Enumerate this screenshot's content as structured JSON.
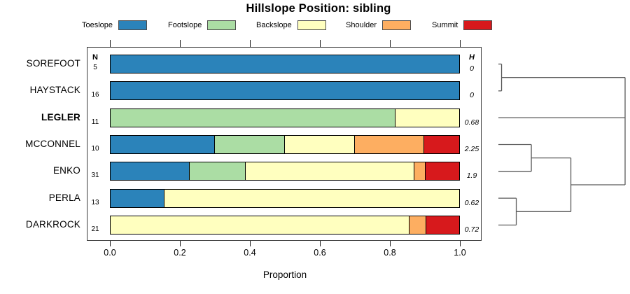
{
  "title": "Hillslope Position: sibling",
  "columns": {
    "n_header": "N",
    "h_header": "H"
  },
  "axis": {
    "xlabel": "Proportion",
    "ticks": [
      "0.0",
      "0.2",
      "0.4",
      "0.6",
      "0.8",
      "1.0"
    ]
  },
  "legend": {
    "items": [
      {
        "label": "Toeslope",
        "color": "#2B83BA"
      },
      {
        "label": "Footslope",
        "color": "#ABDDA4"
      },
      {
        "label": "Backslope",
        "color": "#FFFFBF"
      },
      {
        "label": "Shoulder",
        "color": "#FDAE61"
      },
      {
        "label": "Summit",
        "color": "#D7191C"
      }
    ]
  },
  "chart_data": {
    "type": "bar",
    "subtype": "horizontal-stacked-proportion",
    "title": "Hillslope Position: sibling",
    "xlabel": "Proportion",
    "xlim": [
      0,
      1
    ],
    "x_ticks": [
      0.0,
      0.2,
      0.4,
      0.6,
      0.8,
      1.0
    ],
    "legend_position": "top",
    "categories": [
      "Toeslope",
      "Footslope",
      "Backslope",
      "Shoulder",
      "Summit"
    ],
    "colors": [
      "#2B83BA",
      "#ABDDA4",
      "#FFFFBF",
      "#FDAE61",
      "#D7191C"
    ],
    "rows": [
      {
        "name": "SOREFOOT",
        "n": "5",
        "h": "0",
        "shannon_h": 0,
        "bold": false,
        "proportions": [
          1,
          0,
          0,
          0,
          0
        ]
      },
      {
        "name": "HAYSTACK",
        "n": "16",
        "h": "0",
        "shannon_h": 0,
        "bold": false,
        "proportions": [
          1,
          0,
          0,
          0,
          0
        ]
      },
      {
        "name": "LEGLER",
        "n": "11",
        "h": "0.68",
        "shannon_h": 0.68,
        "bold": true,
        "proportions": [
          0,
          0.818,
          0.182,
          0,
          0
        ]
      },
      {
        "name": "MCCONNEL",
        "n": "10",
        "h": "2.25",
        "shannon_h": 2.25,
        "bold": false,
        "proportions": [
          0.3,
          0.2,
          0.2,
          0.2,
          0.1
        ]
      },
      {
        "name": "ENKO",
        "n": "31",
        "h": "1.9",
        "shannon_h": 1.9,
        "bold": false,
        "proportions": [
          0.226,
          0.161,
          0.484,
          0.032,
          0.097
        ]
      },
      {
        "name": "PERLA",
        "n": "13",
        "h": "0.62",
        "shannon_h": 0.62,
        "bold": false,
        "proportions": [
          0.154,
          0,
          0.846,
          0,
          0
        ]
      },
      {
        "name": "DARKROCK",
        "n": "21",
        "h": "0.72",
        "shannon_h": 0.72,
        "bold": false,
        "proportions": [
          0,
          0,
          0.857,
          0.048,
          0.095
        ]
      }
    ],
    "dendrogram": {
      "orientation": "right",
      "joins": [
        {
          "children": [
            {
              "leaf": 0
            },
            {
              "leaf": 1
            }
          ],
          "height": 0.025
        },
        {
          "children": [
            {
              "leaf": 3
            },
            {
              "leaf": 4
            }
          ],
          "height": 0.26
        },
        {
          "children": [
            {
              "leaf": 5
            },
            {
              "leaf": 6
            }
          ],
          "height": 0.141
        },
        {
          "children": [
            {
              "join": 1
            },
            {
              "join": 2
            }
          ],
          "height": 0.572
        },
        {
          "children": [
            {
              "join": 0
            },
            {
              "leaf": 2
            },
            {
              "join": 3
            }
          ],
          "height": 1.0
        }
      ]
    }
  }
}
